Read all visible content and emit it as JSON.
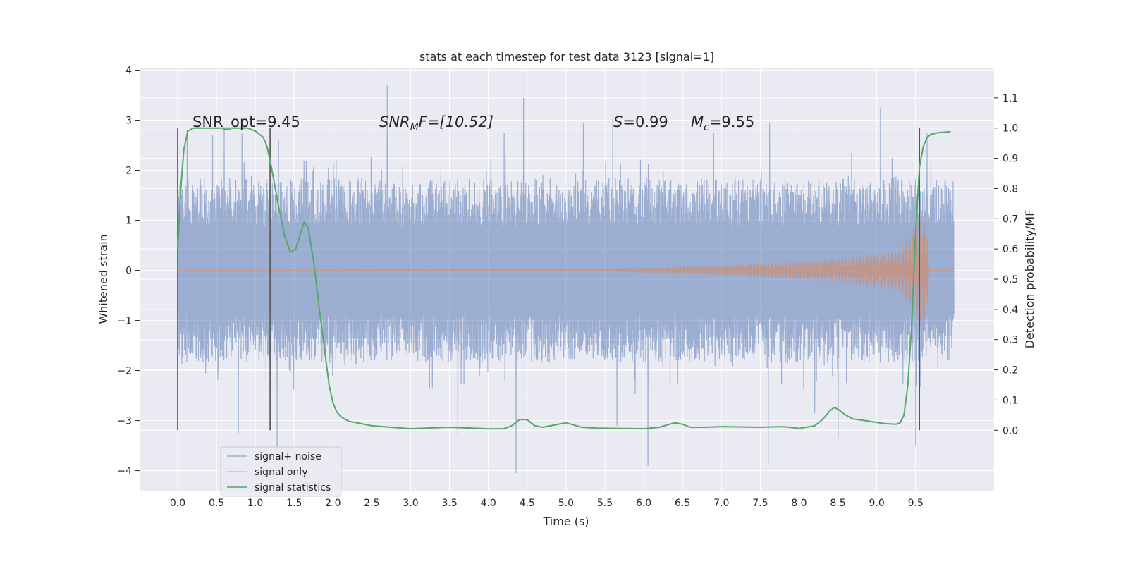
{
  "chart_data": {
    "type": "line",
    "title": "stats at each timestep for test data 3123 [signal=1]",
    "xlabel": "Time (s)",
    "ylabel": "Whitened strain",
    "y2label": "Detection probability/MF",
    "xlim": [
      -0.49,
      10.51
    ],
    "ylim": [
      -4.4,
      4.05
    ],
    "y2lim": [
      -0.2,
      1.2
    ],
    "xticks": [
      "0.0",
      "0.5",
      "1.0",
      "1.5",
      "2.0",
      "2.5",
      "3.0",
      "3.5",
      "4.0",
      "4.5",
      "5.0",
      "5.5",
      "6.0",
      "6.5",
      "7.0",
      "7.5",
      "8.0",
      "8.5",
      "9.0",
      "9.5"
    ],
    "yticks": [
      "4",
      "3",
      "2",
      "1",
      "0",
      "−1",
      "−2",
      "−3",
      "−4"
    ],
    "y2ticks": [
      "1.1",
      "1.0",
      "0.9",
      "0.8",
      "0.7",
      "0.6",
      "0.5",
      "0.4",
      "0.3",
      "0.2",
      "0.1",
      "0.0"
    ],
    "grid": true,
    "legend_position": "lower-left",
    "annotations": {
      "snr_opt": "SNR_opt=9.45",
      "snr_mf_base": "SNR",
      "snr_mf_sub": "M",
      "snr_mf_rest": "F=[10.52]",
      "s_stat": "=0.99",
      "s_letter": "S",
      "mc_letter": "M",
      "mc_sub": "c",
      "mc_value": "=9.55"
    },
    "vertical_lines_x": [
      0.0,
      1.19,
      9.55
    ],
    "series": [
      {
        "name": "signal+ noise",
        "color": "#4c72b0",
        "axis": "left",
        "x_range": [
          0.0,
          9.99
        ],
        "envelope_abs": 1.6,
        "spikes": [
          {
            "x": 0.12,
            "y": 2.8
          },
          {
            "x": 0.45,
            "y": 2.7
          },
          {
            "x": 0.6,
            "y": 2.85
          },
          {
            "x": 0.78,
            "y": -3.25
          },
          {
            "x": 0.83,
            "y": 2.75
          },
          {
            "x": 1.28,
            "y": -3.6
          },
          {
            "x": 1.3,
            "y": 2.6
          },
          {
            "x": 2.7,
            "y": 3.7
          },
          {
            "x": 3.6,
            "y": -3.3
          },
          {
            "x": 4.2,
            "y": 2.75
          },
          {
            "x": 4.35,
            "y": -4.05
          },
          {
            "x": 4.45,
            "y": 3.45
          },
          {
            "x": 5.22,
            "y": 2.95
          },
          {
            "x": 5.6,
            "y": 3.05
          },
          {
            "x": 5.65,
            "y": -3.1
          },
          {
            "x": 6.05,
            "y": -3.9
          },
          {
            "x": 6.9,
            "y": 2.75
          },
          {
            "x": 7.6,
            "y": -3.85
          },
          {
            "x": 7.62,
            "y": 2.95
          },
          {
            "x": 8.2,
            "y": -2.85
          },
          {
            "x": 8.5,
            "y": -3.35
          },
          {
            "x": 9.05,
            "y": 3.25
          },
          {
            "x": 9.5,
            "y": -3.5
          },
          {
            "x": 9.65,
            "y": 2.75
          }
        ]
      },
      {
        "name": "signal only",
        "color": "#dd8452",
        "axis": "left",
        "x_range": [
          0.0,
          9.99
        ],
        "description_points": [
          {
            "x": 0.0,
            "amp": 0.0
          },
          {
            "x": 5.5,
            "amp": 0.02
          },
          {
            "x": 7.0,
            "amp": 0.1
          },
          {
            "x": 8.5,
            "amp": 0.22
          },
          {
            "x": 9.3,
            "amp": 0.4
          },
          {
            "x": 9.62,
            "amp": 1.2
          },
          {
            "x": 9.68,
            "amp": 0.05
          }
        ]
      },
      {
        "name": "signal statistics",
        "color": "#55a868",
        "axis": "right",
        "x": [
          0.0,
          0.04,
          0.08,
          0.13,
          0.2,
          0.3,
          0.5,
          0.7,
          0.9,
          1.0,
          1.1,
          1.15,
          1.2,
          1.3,
          1.38,
          1.45,
          1.52,
          1.58,
          1.63,
          1.68,
          1.75,
          1.82,
          1.9,
          1.95,
          2.0,
          2.05,
          2.1,
          2.2,
          2.5,
          3.0,
          3.5,
          4.0,
          4.2,
          4.3,
          4.4,
          4.5,
          4.6,
          4.7,
          5.0,
          5.2,
          5.4,
          6.0,
          6.2,
          6.4,
          6.5,
          6.6,
          6.8,
          7.0,
          7.5,
          7.8,
          8.0,
          8.2,
          8.3,
          8.4,
          8.45,
          8.5,
          8.55,
          8.6,
          8.7,
          8.9,
          9.1,
          9.25,
          9.3,
          9.35,
          9.4,
          9.45,
          9.5,
          9.55,
          9.6,
          9.65,
          9.7,
          9.8,
          9.95
        ],
        "values": [
          0.6,
          0.8,
          0.93,
          0.99,
          1.0,
          1.0,
          1.0,
          1.0,
          1.0,
          0.99,
          0.97,
          0.94,
          0.88,
          0.74,
          0.64,
          0.59,
          0.6,
          0.65,
          0.69,
          0.67,
          0.56,
          0.41,
          0.25,
          0.15,
          0.09,
          0.06,
          0.045,
          0.03,
          0.015,
          0.005,
          0.01,
          0.005,
          0.005,
          0.015,
          0.035,
          0.035,
          0.015,
          0.01,
          0.025,
          0.01,
          0.007,
          0.005,
          0.01,
          0.025,
          0.02,
          0.01,
          0.01,
          0.012,
          0.01,
          0.012,
          0.006,
          0.015,
          0.035,
          0.065,
          0.075,
          0.07,
          0.06,
          0.05,
          0.037,
          0.03,
          0.022,
          0.02,
          0.025,
          0.05,
          0.15,
          0.35,
          0.65,
          0.87,
          0.94,
          0.97,
          0.98,
          0.985,
          0.988
        ]
      }
    ]
  }
}
